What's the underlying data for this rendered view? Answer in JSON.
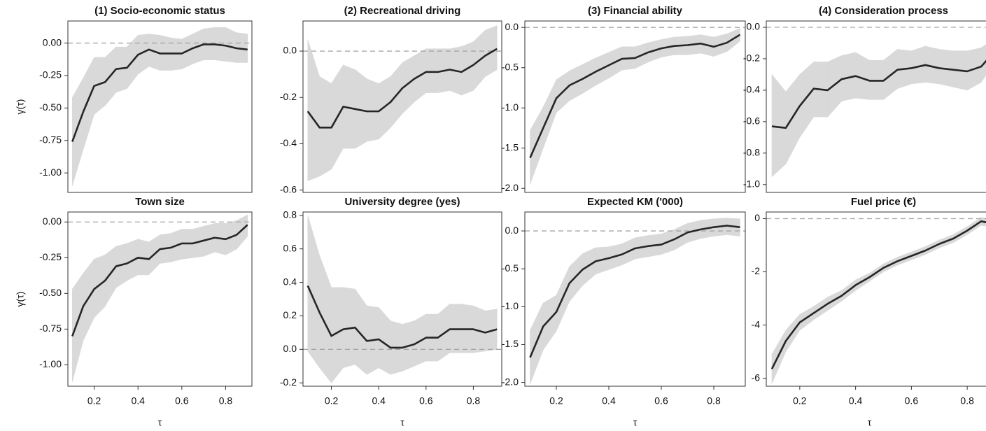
{
  "chart_data": [
    {
      "type": "line",
      "title": "(1) Socio-economic status",
      "ylabel": "γ(τ)",
      "x": [
        0.1,
        0.15,
        0.2,
        0.25,
        0.3,
        0.35,
        0.4,
        0.45,
        0.5,
        0.55,
        0.6,
        0.65,
        0.7,
        0.75,
        0.8,
        0.85,
        0.9
      ],
      "values": [
        -0.76,
        -0.53,
        -0.33,
        -0.3,
        -0.2,
        -0.19,
        -0.09,
        -0.05,
        -0.08,
        -0.08,
        -0.08,
        -0.04,
        -0.01,
        -0.01,
        -0.02,
        -0.04,
        -0.05
      ],
      "lower": [
        -1.1,
        -0.82,
        -0.55,
        -0.48,
        -0.38,
        -0.35,
        -0.24,
        -0.18,
        -0.21,
        -0.21,
        -0.2,
        -0.16,
        -0.13,
        -0.13,
        -0.14,
        -0.15,
        -0.15
      ],
      "upper": [
        -0.42,
        -0.27,
        -0.11,
        -0.11,
        -0.03,
        -0.03,
        0.06,
        0.07,
        0.06,
        0.04,
        0.03,
        0.07,
        0.11,
        0.12,
        0.12,
        0.08,
        0.07
      ],
      "color": "#262626",
      "band_color": "#d9d9d9",
      "reference_line": 0,
      "xlim": [
        0.08,
        0.92
      ],
      "ylim": [
        -1.15,
        0.17
      ],
      "yticks": [
        {
          "value": -1,
          "label": "-1.00"
        },
        -0.75,
        {
          "value": -0.5,
          "label": "-0.50"
        },
        -0.25,
        {
          "value": 0,
          "label": "0.00"
        }
      ]
    },
    {
      "type": "line",
      "title": "(2) Recreational driving",
      "x": [
        0.1,
        0.15,
        0.2,
        0.25,
        0.3,
        0.35,
        0.4,
        0.45,
        0.5,
        0.55,
        0.6,
        0.65,
        0.7,
        0.75,
        0.8,
        0.85,
        0.9
      ],
      "values": [
        -0.26,
        -0.33,
        -0.33,
        -0.24,
        -0.25,
        -0.26,
        -0.26,
        -0.22,
        -0.16,
        -0.12,
        -0.09,
        -0.09,
        -0.08,
        -0.09,
        -0.06,
        -0.02,
        0.01
      ],
      "lower": [
        -0.56,
        -0.54,
        -0.51,
        -0.42,
        -0.42,
        -0.39,
        -0.38,
        -0.33,
        -0.27,
        -0.22,
        -0.18,
        -0.18,
        -0.17,
        -0.19,
        -0.17,
        -0.11,
        -0.08
      ],
      "upper": [
        0.05,
        -0.11,
        -0.14,
        -0.06,
        -0.08,
        -0.12,
        -0.14,
        -0.11,
        -0.05,
        -0.02,
        0.01,
        0.01,
        0.01,
        0.02,
        0.04,
        0.09,
        0.11
      ],
      "color": "#262626",
      "band_color": "#d9d9d9",
      "reference_line": 0,
      "xlim": [
        0.08,
        0.92
      ],
      "ylim": [
        -0.61,
        0.13
      ],
      "yticks": [
        -0.6,
        -0.4,
        -0.2,
        {
          "value": 0,
          "label": "0.0"
        }
      ]
    },
    {
      "type": "line",
      "title": "(3) Financial ability",
      "x": [
        0.1,
        0.15,
        0.2,
        0.25,
        0.3,
        0.35,
        0.4,
        0.45,
        0.5,
        0.55,
        0.6,
        0.65,
        0.7,
        0.75,
        0.8,
        0.85,
        0.9
      ],
      "values": [
        -1.62,
        -1.25,
        -0.88,
        -0.72,
        -0.64,
        -0.55,
        -0.47,
        -0.39,
        -0.38,
        -0.31,
        -0.26,
        -0.23,
        -0.22,
        -0.2,
        -0.24,
        -0.19,
        -0.09
      ],
      "lower": [
        -1.95,
        -1.5,
        -1.06,
        -0.91,
        -0.82,
        -0.72,
        -0.63,
        -0.53,
        -0.51,
        -0.43,
        -0.37,
        -0.34,
        -0.34,
        -0.32,
        -0.36,
        -0.3,
        -0.17
      ],
      "upper": [
        -1.28,
        -0.99,
        -0.65,
        -0.54,
        -0.46,
        -0.38,
        -0.31,
        -0.24,
        -0.24,
        -0.19,
        -0.15,
        -0.12,
        -0.11,
        -0.09,
        -0.12,
        -0.08,
        -0.01
      ],
      "color": "#262626",
      "band_color": "#d9d9d9",
      "reference_line": 0,
      "xlim": [
        0.08,
        0.92
      ],
      "ylim": [
        -2.05,
        0.08
      ],
      "yticks": [
        {
          "value": -2,
          "label": "-2.0"
        },
        -1.5,
        {
          "value": -1,
          "label": "-1.0"
        },
        -0.5,
        {
          "value": 0,
          "label": "0.0"
        }
      ]
    },
    {
      "type": "line",
      "title": "(4) Consideration process",
      "x": [
        0.1,
        0.15,
        0.2,
        0.25,
        0.3,
        0.35,
        0.4,
        0.45,
        0.5,
        0.55,
        0.6,
        0.65,
        0.7,
        0.75,
        0.8,
        0.85,
        0.9
      ],
      "values": [
        -0.63,
        -0.64,
        -0.5,
        -0.39,
        -0.4,
        -0.33,
        -0.31,
        -0.34,
        -0.34,
        -0.27,
        -0.26,
        -0.24,
        -0.26,
        -0.27,
        -0.28,
        -0.25,
        -0.15
      ],
      "lower": [
        -0.95,
        -0.87,
        -0.7,
        -0.57,
        -0.57,
        -0.47,
        -0.45,
        -0.46,
        -0.46,
        -0.39,
        -0.36,
        -0.35,
        -0.36,
        -0.38,
        -0.4,
        -0.35,
        -0.22
      ],
      "upper": [
        -0.3,
        -0.41,
        -0.3,
        -0.22,
        -0.22,
        -0.18,
        -0.16,
        -0.21,
        -0.21,
        -0.14,
        -0.15,
        -0.12,
        -0.14,
        -0.15,
        -0.15,
        -0.13,
        -0.07
      ],
      "color": "#262626",
      "band_color": "#d9d9d9",
      "reference_line": 0,
      "xlim": [
        0.08,
        0.92
      ],
      "ylim": [
        -1.05,
        0.04
      ],
      "yticks": [
        {
          "value": -1,
          "label": "-1.0"
        },
        -0.8,
        -0.6,
        -0.4,
        -0.2,
        {
          "value": 0,
          "label": "0.0"
        }
      ]
    },
    {
      "type": "line",
      "title": "Town size",
      "ylabel": "γ(τ)",
      "xlabel": "τ",
      "x": [
        0.1,
        0.15,
        0.2,
        0.25,
        0.3,
        0.35,
        0.4,
        0.45,
        0.5,
        0.55,
        0.6,
        0.65,
        0.7,
        0.75,
        0.8,
        0.85,
        0.9
      ],
      "values": [
        -0.8,
        -0.59,
        -0.47,
        -0.41,
        -0.31,
        -0.29,
        -0.25,
        -0.26,
        -0.19,
        -0.18,
        -0.15,
        -0.15,
        -0.13,
        -0.11,
        -0.12,
        -0.09,
        -0.02
      ],
      "lower": [
        -1.12,
        -0.83,
        -0.67,
        -0.59,
        -0.46,
        -0.41,
        -0.37,
        -0.37,
        -0.29,
        -0.28,
        -0.26,
        -0.25,
        -0.24,
        -0.21,
        -0.23,
        -0.19,
        -0.1
      ],
      "upper": [
        -0.47,
        -0.36,
        -0.26,
        -0.23,
        -0.17,
        -0.15,
        -0.12,
        -0.14,
        -0.09,
        -0.08,
        -0.05,
        -0.05,
        -0.03,
        -0.01,
        -0.01,
        0.01,
        0.05
      ],
      "color": "#262626",
      "band_color": "#d9d9d9",
      "reference_line": 0,
      "xlim": [
        0.08,
        0.92
      ],
      "ylim": [
        -1.15,
        0.07
      ],
      "xticks": [
        0.2,
        0.4,
        0.6,
        0.8
      ],
      "yticks": [
        {
          "value": -1,
          "label": "-1.00"
        },
        -0.75,
        {
          "value": -0.5,
          "label": "-0.50"
        },
        -0.25,
        {
          "value": 0,
          "label": "0.00"
        }
      ]
    },
    {
      "type": "line",
      "title": "University degree (yes)",
      "xlabel": "τ",
      "x": [
        0.1,
        0.15,
        0.2,
        0.25,
        0.3,
        0.35,
        0.4,
        0.45,
        0.5,
        0.55,
        0.6,
        0.65,
        0.7,
        0.75,
        0.8,
        0.85,
        0.9
      ],
      "values": [
        0.38,
        0.22,
        0.08,
        0.12,
        0.13,
        0.05,
        0.06,
        0.01,
        0.01,
        0.03,
        0.07,
        0.07,
        0.12,
        0.12,
        0.12,
        0.1,
        0.12
      ],
      "lower": [
        -0.01,
        -0.11,
        -0.2,
        -0.11,
        -0.09,
        -0.15,
        -0.11,
        -0.15,
        -0.13,
        -0.1,
        -0.07,
        -0.07,
        -0.02,
        -0.02,
        -0.02,
        -0.01,
        0.0
      ],
      "upper": [
        0.8,
        0.56,
        0.37,
        0.37,
        0.36,
        0.26,
        0.25,
        0.17,
        0.15,
        0.17,
        0.21,
        0.21,
        0.27,
        0.27,
        0.26,
        0.23,
        0.24
      ],
      "color": "#262626",
      "band_color": "#d9d9d9",
      "reference_line": 0,
      "xlim": [
        0.08,
        0.92
      ],
      "ylim": [
        -0.22,
        0.82
      ],
      "xticks": [
        0.2,
        0.4,
        0.6,
        0.8
      ],
      "yticks": [
        -0.2,
        {
          "value": 0,
          "label": "0.0"
        },
        0.2,
        0.4,
        0.6,
        0.8
      ]
    },
    {
      "type": "line",
      "title": "Expected KM ('000)",
      "xlabel": "τ",
      "x": [
        0.1,
        0.15,
        0.2,
        0.25,
        0.3,
        0.35,
        0.4,
        0.45,
        0.5,
        0.55,
        0.6,
        0.65,
        0.7,
        0.75,
        0.8,
        0.85,
        0.9
      ],
      "values": [
        -1.67,
        -1.26,
        -1.07,
        -0.69,
        -0.51,
        -0.4,
        -0.36,
        -0.31,
        -0.23,
        -0.2,
        -0.18,
        -0.11,
        -0.02,
        0.02,
        0.05,
        0.07,
        0.05
      ],
      "lower": [
        -2.02,
        -1.57,
        -1.32,
        -0.93,
        -0.72,
        -0.57,
        -0.51,
        -0.45,
        -0.37,
        -0.34,
        -0.31,
        -0.25,
        -0.15,
        -0.1,
        -0.07,
        -0.05,
        -0.07
      ],
      "upper": [
        -1.31,
        -0.95,
        -0.85,
        -0.47,
        -0.3,
        -0.22,
        -0.21,
        -0.17,
        -0.09,
        -0.06,
        -0.04,
        0.02,
        0.1,
        0.14,
        0.16,
        0.17,
        0.16
      ],
      "color": "#262626",
      "band_color": "#d9d9d9",
      "reference_line": 0,
      "xlim": [
        0.08,
        0.92
      ],
      "ylim": [
        -2.05,
        0.25
      ],
      "xticks": [
        0.2,
        0.4,
        0.6,
        0.8
      ],
      "yticks": [
        {
          "value": -2,
          "label": "-2.0"
        },
        -1.5,
        {
          "value": -1,
          "label": "-1.0"
        },
        -0.5,
        {
          "value": 0,
          "label": "0.0"
        }
      ]
    },
    {
      "type": "line",
      "title": "Fuel price (€)",
      "xlabel": "τ",
      "x": [
        0.1,
        0.15,
        0.2,
        0.25,
        0.3,
        0.35,
        0.4,
        0.45,
        0.5,
        0.55,
        0.6,
        0.65,
        0.7,
        0.75,
        0.8,
        0.85,
        0.9
      ],
      "values": [
        -5.65,
        -4.6,
        -3.9,
        -3.55,
        -3.2,
        -2.9,
        -2.5,
        -2.2,
        -1.85,
        -1.6,
        -1.4,
        -1.2,
        -0.95,
        -0.75,
        -0.45,
        -0.1,
        -0.2
      ],
      "lower": [
        -6.2,
        -5.0,
        -4.2,
        -3.8,
        -3.45,
        -3.1,
        -2.7,
        -2.35,
        -2.0,
        -1.75,
        -1.55,
        -1.35,
        -1.1,
        -0.9,
        -0.6,
        -0.25,
        -0.35
      ],
      "upper": [
        -5.1,
        -4.2,
        -3.6,
        -3.3,
        -2.95,
        -2.7,
        -2.3,
        -2.05,
        -1.7,
        -1.45,
        -1.25,
        -1.05,
        -0.8,
        -0.6,
        -0.3,
        0.05,
        -0.05
      ],
      "color": "#262626",
      "band_color": "#d9d9d9",
      "reference_line": 0,
      "xlim": [
        0.08,
        0.92
      ],
      "ylim": [
        -6.3,
        0.25
      ],
      "xticks": [
        0.2,
        0.4,
        0.6,
        0.8
      ],
      "yticks": [
        -6,
        -4,
        -2,
        0
      ]
    }
  ]
}
